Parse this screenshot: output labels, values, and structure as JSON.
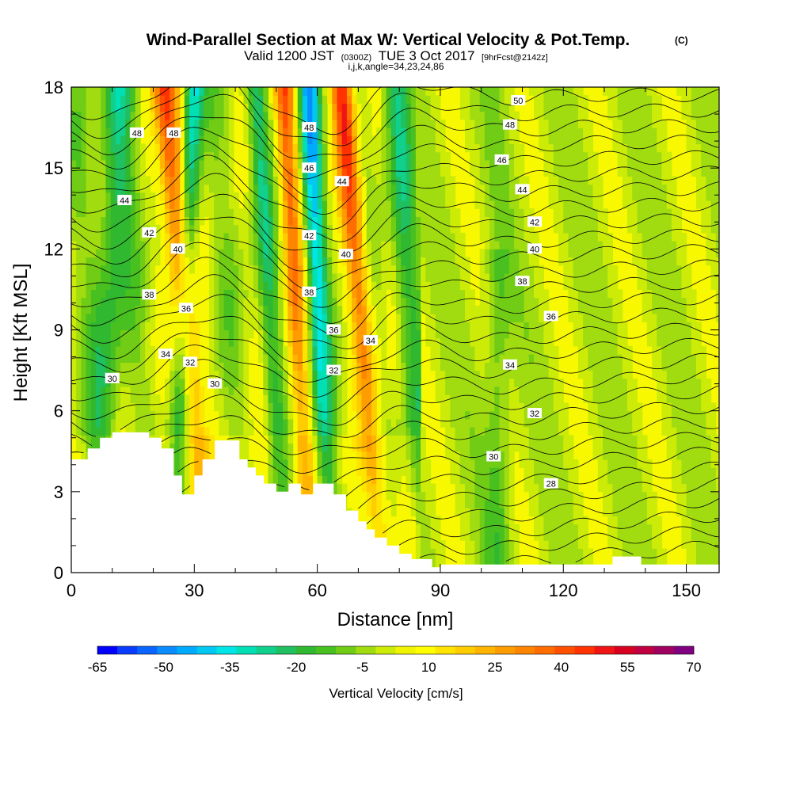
{
  "title": {
    "main": "Wind-Parallel Section at Max W: Vertical Velocity & Pot.Temp.",
    "mark": "(C)",
    "valid_a": "Valid 1200 JST",
    "valid_b": "(0300Z)",
    "valid_c": "TUE 3 Oct 2017",
    "valid_d": "[9hrFcst@2142z]",
    "params": "i,j,k,angle=34,23,24,86"
  },
  "chart_data": {
    "type": "heatmap",
    "xlabel": "Distance [nm]",
    "ylabel": "Height [Kft MSL]",
    "xlim": [
      0,
      158
    ],
    "ylim": [
      0,
      18
    ],
    "x_ticks": [
      0,
      30,
      60,
      90,
      120,
      150
    ],
    "y_ticks": [
      0,
      3,
      6,
      9,
      12,
      15,
      18
    ],
    "colorbar": {
      "label": "Vertical Velocity [cm/s]",
      "tick_labels": [
        "-65",
        "-50",
        "-35",
        "-20",
        "-5",
        "10",
        "25",
        "40",
        "55",
        "70"
      ],
      "range": [
        -65,
        70
      ],
      "step": 5,
      "colors": [
        "#0000ff",
        "#0a3cff",
        "#0a64ff",
        "#0a8cff",
        "#00aaff",
        "#00c8f0",
        "#00e6e6",
        "#00e0b4",
        "#10d08c",
        "#20c060",
        "#30b830",
        "#48c020",
        "#70cc14",
        "#a0dc10",
        "#ccec08",
        "#f0f400",
        "#ffff00",
        "#ffe400",
        "#ffcc00",
        "#ffb400",
        "#ff9c00",
        "#ff8400",
        "#ff6c00",
        "#ff5000",
        "#ff3200",
        "#f01414",
        "#d80020",
        "#c00040",
        "#a00060",
        "#800080"
      ]
    },
    "contours": {
      "variable": "Pot.Temp.",
      "labels": [
        {
          "text": "50",
          "x": 109,
          "y": 17.5
        },
        {
          "text": "48",
          "x": 107,
          "y": 16.6
        },
        {
          "text": "46",
          "x": 105,
          "y": 15.3
        },
        {
          "text": "44",
          "x": 110,
          "y": 14.2
        },
        {
          "text": "42",
          "x": 113,
          "y": 13.0
        },
        {
          "text": "40",
          "x": 113,
          "y": 12.0
        },
        {
          "text": "38",
          "x": 110,
          "y": 10.8
        },
        {
          "text": "36",
          "x": 117,
          "y": 9.5
        },
        {
          "text": "34",
          "x": 107,
          "y": 7.7
        },
        {
          "text": "32",
          "x": 113,
          "y": 5.9
        },
        {
          "text": "30",
          "x": 103,
          "y": 4.3
        },
        {
          "text": "28",
          "x": 117,
          "y": 3.3
        },
        {
          "text": "48",
          "x": 16,
          "y": 16.3
        },
        {
          "text": "48",
          "x": 25,
          "y": 16.3
        },
        {
          "text": "44",
          "x": 13,
          "y": 13.8
        },
        {
          "text": "42",
          "x": 19,
          "y": 12.6
        },
        {
          "text": "40",
          "x": 26,
          "y": 12.0
        },
        {
          "text": "38",
          "x": 19,
          "y": 10.3
        },
        {
          "text": "36",
          "x": 28,
          "y": 9.8
        },
        {
          "text": "34",
          "x": 23,
          "y": 8.1
        },
        {
          "text": "32",
          "x": 29,
          "y": 7.8
        },
        {
          "text": "30",
          "x": 10,
          "y": 7.2
        },
        {
          "text": "30",
          "x": 35,
          "y": 7.0
        },
        {
          "text": "48",
          "x": 58,
          "y": 16.5
        },
        {
          "text": "46",
          "x": 58,
          "y": 15.0
        },
        {
          "text": "44",
          "x": 66,
          "y": 14.5
        },
        {
          "text": "42",
          "x": 58,
          "y": 12.5
        },
        {
          "text": "40",
          "x": 67,
          "y": 11.8
        },
        {
          "text": "38",
          "x": 58,
          "y": 10.4
        },
        {
          "text": "36",
          "x": 64,
          "y": 9.0
        },
        {
          "text": "34",
          "x": 73,
          "y": 8.6
        },
        {
          "text": "32",
          "x": 64,
          "y": 7.5
        }
      ]
    },
    "updrafts": [
      {
        "x_top": 23,
        "x_bottom": 33,
        "strength": 60,
        "width": 3.2
      },
      {
        "x_top": 52,
        "x_bottom": 58,
        "strength": 45,
        "width": 2.6
      },
      {
        "x_top": 66,
        "x_bottom": 76,
        "strength": 58,
        "width": 2.8
      }
    ],
    "downdrafts": [
      {
        "x_top": 30,
        "x_bottom": 25,
        "strength": -38,
        "width": 2.4
      },
      {
        "x_top": 58,
        "x_bottom": 63,
        "strength": -45,
        "width": 2.4
      },
      {
        "x_top": 12,
        "x_bottom": 6,
        "strength": -25,
        "width": 4.0
      },
      {
        "x_top": 45,
        "x_bottom": 52,
        "strength": -22,
        "width": 2.2
      },
      {
        "x_top": 79,
        "x_bottom": 86,
        "strength": -20,
        "width": 3.0
      }
    ],
    "terrain": [
      [
        0,
        4.2
      ],
      [
        4,
        4.2
      ],
      [
        4,
        4.6
      ],
      [
        7,
        4.6
      ],
      [
        7,
        5.0
      ],
      [
        10,
        5.0
      ],
      [
        10,
        5.2
      ],
      [
        19,
        5.2
      ],
      [
        19,
        5.0
      ],
      [
        22,
        5.0
      ],
      [
        22,
        4.6
      ],
      [
        25,
        4.6
      ],
      [
        25,
        3.6
      ],
      [
        27,
        3.6
      ],
      [
        27,
        2.9
      ],
      [
        30,
        2.9
      ],
      [
        30,
        3.6
      ],
      [
        32,
        3.6
      ],
      [
        32,
        4.2
      ],
      [
        35,
        4.2
      ],
      [
        35,
        4.9
      ],
      [
        41,
        4.9
      ],
      [
        41,
        4.2
      ],
      [
        43,
        4.2
      ],
      [
        43,
        3.9
      ],
      [
        45,
        3.9
      ],
      [
        45,
        3.6
      ],
      [
        47,
        3.6
      ],
      [
        47,
        3.3
      ],
      [
        50,
        3.3
      ],
      [
        50,
        3.0
      ],
      [
        53,
        3.0
      ],
      [
        53,
        3.3
      ],
      [
        56,
        3.3
      ],
      [
        56,
        2.9
      ],
      [
        59,
        2.9
      ],
      [
        59,
        3.3
      ],
      [
        64,
        3.3
      ],
      [
        64,
        2.9
      ],
      [
        67,
        2.9
      ],
      [
        67,
        2.3
      ],
      [
        70,
        2.3
      ],
      [
        70,
        1.9
      ],
      [
        72,
        1.9
      ],
      [
        72,
        1.6
      ],
      [
        74,
        1.6
      ],
      [
        74,
        1.3
      ],
      [
        77,
        1.3
      ],
      [
        77,
        1.0
      ],
      [
        80,
        1.0
      ],
      [
        80,
        0.7
      ],
      [
        83,
        0.7
      ],
      [
        83,
        0.5
      ],
      [
        88,
        0.5
      ],
      [
        88,
        0.2
      ],
      [
        90,
        0.2
      ],
      [
        90,
        0.3
      ],
      [
        132,
        0.3
      ],
      [
        132,
        0.6
      ],
      [
        139,
        0.6
      ],
      [
        139,
        0.3
      ],
      [
        158,
        0.3
      ]
    ]
  }
}
